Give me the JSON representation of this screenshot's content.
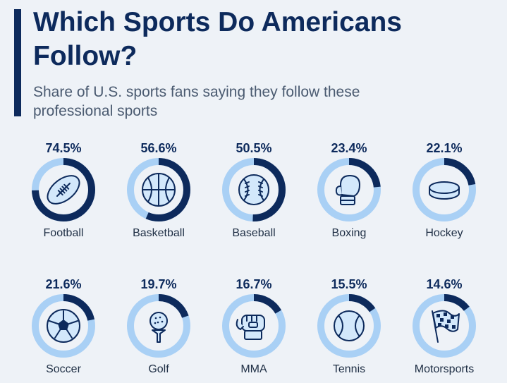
{
  "header": {
    "title": "Which Sports Do Americans Follow?",
    "subtitle": "Share of U.S. sports fans saying they follow these professional sports"
  },
  "colors": {
    "background": "#eef2f7",
    "accent": "#0d2a5c",
    "ring_track": "#a9d0f5",
    "icon_fill": "#d3e8fb",
    "icon_stroke": "#0d2a5c"
  },
  "chart_data": {
    "type": "donut-grid",
    "title": "Which Sports Do Americans Follow?",
    "subtitle": "Share of U.S. sports fans saying they follow these professional sports",
    "unit": "%",
    "categories": [
      "Football",
      "Basketball",
      "Baseball",
      "Boxing",
      "Hockey",
      "Soccer",
      "Golf",
      "MMA",
      "Tennis",
      "Motorsports"
    ],
    "values": [
      74.5,
      56.6,
      50.5,
      23.4,
      22.1,
      21.6,
      19.7,
      16.7,
      15.5,
      14.6
    ],
    "labels": [
      "74.5%",
      "56.6%",
      "50.5%",
      "23.4%",
      "22.1%",
      "21.6%",
      "19.7%",
      "16.7%",
      "15.5%",
      "14.6%"
    ],
    "icons": [
      "football-icon",
      "basketball-icon",
      "baseball-icon",
      "boxing-glove-icon",
      "hockey-puck-icon",
      "soccer-ball-icon",
      "golf-ball-icon",
      "mma-glove-icon",
      "tennis-ball-icon",
      "checkered-flag-icon"
    ]
  }
}
